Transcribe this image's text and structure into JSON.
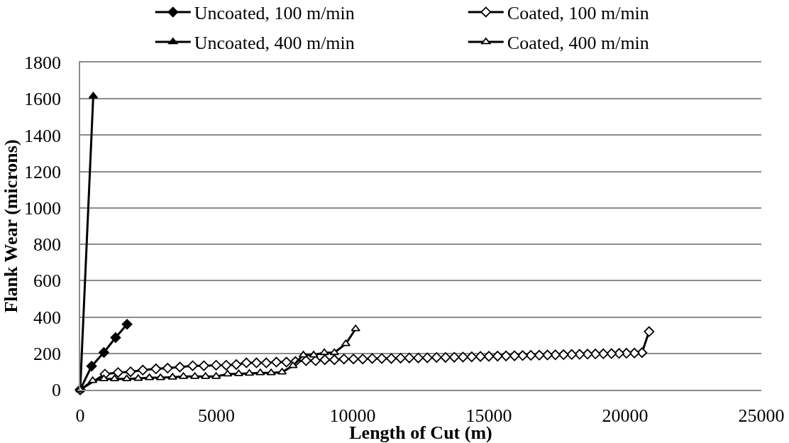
{
  "chart_data": {
    "type": "line",
    "xlabel": "Length of Cut (m)",
    "ylabel": "Flank Wear (microns)",
    "xlim": [
      0,
      25000
    ],
    "xticks": [
      0,
      5000,
      10000,
      15000,
      20000,
      25000
    ],
    "ylim": [
      0,
      1800
    ],
    "yticks": [
      0,
      200,
      400,
      600,
      800,
      1000,
      1200,
      1400,
      1600,
      1800
    ],
    "grid": "y",
    "legend": "top",
    "line_style": "solid",
    "series": [
      {
        "name": "Uncoated, 100 m/min",
        "color": "#000000",
        "marker": "diamond",
        "x": [
          1720,
          1300,
          870,
          420,
          0
        ],
        "values": [
          360,
          287,
          205,
          130,
          0
        ]
      },
      {
        "name": "Coated, 100 m/min",
        "color": "#000000",
        "marker": "diamond",
        "x": [
          20880,
          20620,
          20340,
          20050,
          19780,
          19500,
          19200,
          18910,
          18620,
          18330,
          18040,
          17740,
          17440,
          17150,
          16850,
          16540,
          16240,
          15940,
          15630,
          15320,
          15000,
          14690,
          14370,
          14050,
          13730,
          13410,
          13080,
          12740,
          12410,
          12080,
          11760,
          11420,
          11070,
          10720,
          10370,
          10030,
          9680,
          9330,
          8980,
          8640,
          8290,
          7900,
          7570,
          7200,
          6830,
          6470,
          6100,
          5730,
          5360,
          4990,
          4540,
          4130,
          3660,
          3210,
          2780,
          2300,
          1850,
          1390,
          910,
          0
        ],
        "values": [
          320,
          204,
          202,
          201,
          200,
          199,
          198,
          197,
          196,
          195,
          194,
          193,
          192,
          191,
          190,
          189,
          188,
          187,
          186,
          185,
          184,
          183,
          181,
          180,
          179,
          178,
          178,
          176,
          175,
          175,
          174,
          172,
          172,
          172,
          169,
          169,
          169,
          165,
          165,
          160,
          160,
          155,
          152,
          152,
          148,
          148,
          148,
          139,
          135,
          135,
          132,
          132,
          125,
          119,
          115,
          108,
          99,
          95,
          86,
          0
        ]
      },
      {
        "name": "Uncoated, 400 m/min",
        "color": "#000000",
        "marker": "triangle",
        "x": [
          480,
          0
        ],
        "values": [
          1615,
          0
        ]
      },
      {
        "name": "Coated, 400 m/min",
        "color": "#000000",
        "marker": "triangle",
        "x": [
          10110,
          9750,
          9330,
          8960,
          8570,
          8190,
          7810,
          7410,
          7010,
          6610,
          6210,
          5820,
          5410,
          4990,
          4600,
          4210,
          3790,
          3390,
          2950,
          2540,
          2130,
          1710,
          1260,
          870,
          460,
          0
        ],
        "values": [
          335,
          253,
          204,
          204,
          191,
          191,
          132,
          97,
          93,
          93,
          90,
          88,
          86,
          73,
          73,
          73,
          73,
          69,
          66,
          66,
          62,
          60,
          60,
          60,
          50,
          0
        ]
      }
    ]
  }
}
